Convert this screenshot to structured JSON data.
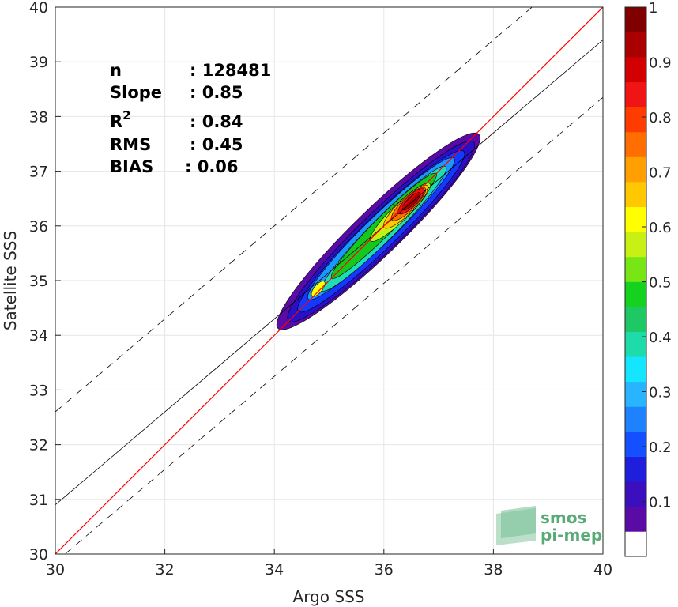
{
  "chart_data": {
    "type": "heatmap",
    "subtype": "density-contour scatter comparison",
    "xlabel": "Argo SSS",
    "ylabel": "Satellite SSS",
    "xlim": [
      30,
      40
    ],
    "ylim": [
      30,
      40
    ],
    "x_ticks": [
      "30",
      "32",
      "34",
      "36",
      "38",
      "40"
    ],
    "y_ticks": [
      "30",
      "31",
      "32",
      "33",
      "34",
      "35",
      "36",
      "37",
      "38",
      "39",
      "40"
    ],
    "grid": true,
    "stats": [
      {
        "label": "n",
        "value": ": 128481"
      },
      {
        "label": "Slope",
        "value": ": 0.85"
      },
      {
        "label": "R",
        "sup": "2",
        "value": ": 0.84"
      },
      {
        "label": "RMS",
        "value": ": 0.45"
      },
      {
        "label": "BIAS",
        "value": ": 0.06"
      }
    ],
    "lines": {
      "identity": {
        "slope": 1.0,
        "intercept": 0.0,
        "color": "#ff0000"
      },
      "regression": {
        "slope": 0.85,
        "intercept": 5.4,
        "color": "#000000"
      },
      "offset_upper": {
        "slope": 0.85,
        "intercept": 7.1,
        "style": "dashed"
      },
      "offset_lower": {
        "slope": 0.85,
        "intercept": 4.35,
        "style": "dashed"
      }
    },
    "density_levels": [
      {
        "level": 0.05,
        "color": "#5a0aa5",
        "center": [
          35.9,
          35.9
        ],
        "half_length": 2.55,
        "half_width": 0.42,
        "angle_deg": 44
      },
      {
        "level": 0.1,
        "color": "#2a0fc8",
        "center": [
          35.95,
          35.9
        ],
        "half_length": 2.35,
        "half_width": 0.36,
        "angle_deg": 44
      },
      {
        "level": 0.2,
        "color": "#1438ff",
        "center": [
          35.95,
          35.9
        ],
        "half_length": 2.1,
        "half_width": 0.3,
        "angle_deg": 44
      },
      {
        "level": 0.3,
        "color": "#1e96ff",
        "center": [
          35.95,
          35.95
        ],
        "half_length": 1.85,
        "half_width": 0.25,
        "angle_deg": 44
      },
      {
        "level": 0.4,
        "color": "#1edcb4",
        "center": [
          36.0,
          35.95
        ],
        "half_length": 1.6,
        "half_width": 0.21,
        "angle_deg": 45
      },
      {
        "level": 0.5,
        "color": "#14c81e",
        "center": [
          36.0,
          36.0
        ],
        "half_length": 1.35,
        "half_width": 0.17,
        "angle_deg": 45
      },
      {
        "level": 0.6,
        "color": "#c8f014",
        "center": [
          36.3,
          36.25
        ],
        "half_length": 0.75,
        "half_width": 0.15,
        "angle_deg": 44
      },
      {
        "level": 0.7,
        "color": "#ffc800",
        "center": [
          36.4,
          36.35
        ],
        "half_length": 0.55,
        "half_width": 0.14,
        "angle_deg": 44
      },
      {
        "level": 0.8,
        "color": "#ff6e00",
        "center": [
          36.45,
          36.4
        ],
        "half_length": 0.42,
        "half_width": 0.12,
        "angle_deg": 44
      },
      {
        "level": 0.9,
        "color": "#f01414",
        "center": [
          36.5,
          36.45
        ],
        "half_length": 0.32,
        "half_width": 0.1,
        "angle_deg": 44
      },
      {
        "level": 1.0,
        "color": "#aa0000",
        "center": [
          36.5,
          36.45
        ],
        "half_length": 0.22,
        "half_width": 0.07,
        "angle_deg": 44
      }
    ],
    "secondary_peak": {
      "center": [
        34.8,
        34.85
      ],
      "color": "#ffff00"
    },
    "colorbar": {
      "range": [
        0,
        1
      ],
      "ticks": [
        "0.1",
        "0.2",
        "0.3",
        "0.4",
        "0.5",
        "0.6",
        "0.7",
        "0.8",
        "0.9",
        "1"
      ],
      "colors": [
        "#ffffff",
        "#5a0aa5",
        "#3c0fbe",
        "#1e1edc",
        "#1450ff",
        "#1e82ff",
        "#28b4ff",
        "#14e6ff",
        "#1edcaa",
        "#1ec864",
        "#14d21e",
        "#78e614",
        "#c8f014",
        "#ffff00",
        "#ffc800",
        "#ffa000",
        "#ff6e00",
        "#ff3c00",
        "#f01414",
        "#d20000",
        "#aa0000",
        "#800000"
      ]
    }
  },
  "watermark": {
    "line1": "smos",
    "line2": "pi-mep",
    "color": "#5aaa78"
  }
}
